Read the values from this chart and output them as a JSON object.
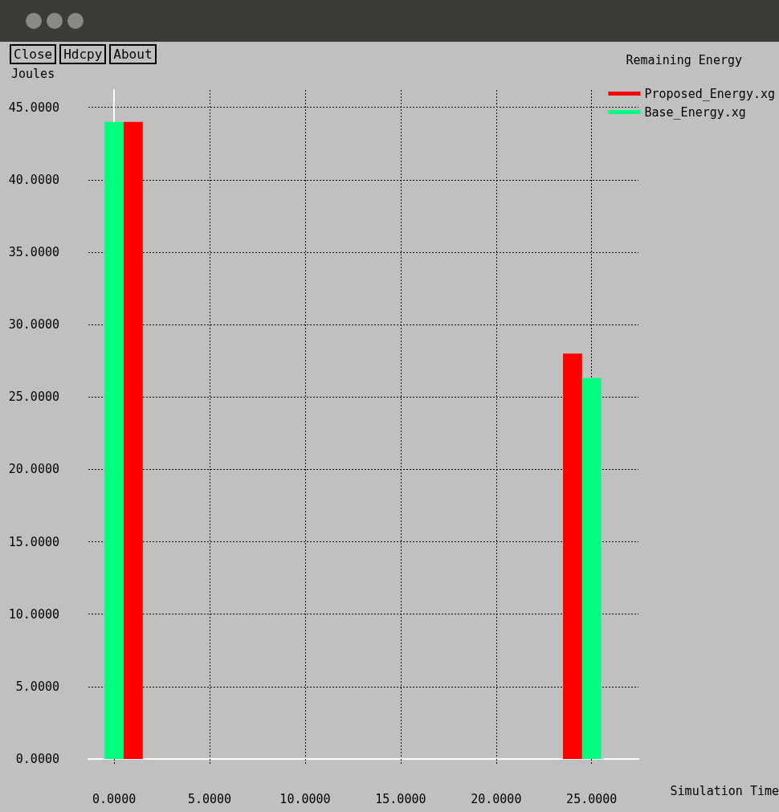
{
  "chart_data": {
    "type": "bar",
    "title": "Remaining Energy",
    "xlabel": "Simulation Time",
    "ylabel": "Joules",
    "annotations": [
      "Close",
      "Hdcpy",
      "About"
    ],
    "series": [
      {
        "name": "Proposed_Energy.xg",
        "color": "#ff0000",
        "x": [
          1,
          24
        ],
        "values": [
          44,
          28
        ]
      },
      {
        "name": "Base_Energy.xg",
        "color": "#00ff7f",
        "x": [
          0,
          25
        ],
        "values": [
          44,
          26.3
        ]
      }
    ],
    "xlim": [
      -1.35,
      27.45
    ],
    "ylim": [
      0,
      46.2
    ],
    "xticks": [
      {
        "value": 0,
        "label": "0.0000"
      },
      {
        "value": 5,
        "label": "5.0000"
      },
      {
        "value": 10,
        "label": "10.0000"
      },
      {
        "value": 15,
        "label": "15.0000"
      },
      {
        "value": 20,
        "label": "20.0000"
      },
      {
        "value": 25,
        "label": "25.0000"
      }
    ],
    "yticks": [
      {
        "value": 0,
        "label": "0.0000"
      },
      {
        "value": 5,
        "label": "5.0000"
      },
      {
        "value": 10,
        "label": "10.0000"
      },
      {
        "value": 15,
        "label": "15.0000"
      },
      {
        "value": 20,
        "label": "20.0000"
      },
      {
        "value": 25,
        "label": "25.0000"
      },
      {
        "value": 30,
        "label": "30.0000"
      },
      {
        "value": 35,
        "label": "35.0000"
      },
      {
        "value": 40,
        "label": "40.0000"
      },
      {
        "value": 45,
        "label": "45.0000"
      }
    ],
    "grid": true,
    "legend": "top right"
  }
}
